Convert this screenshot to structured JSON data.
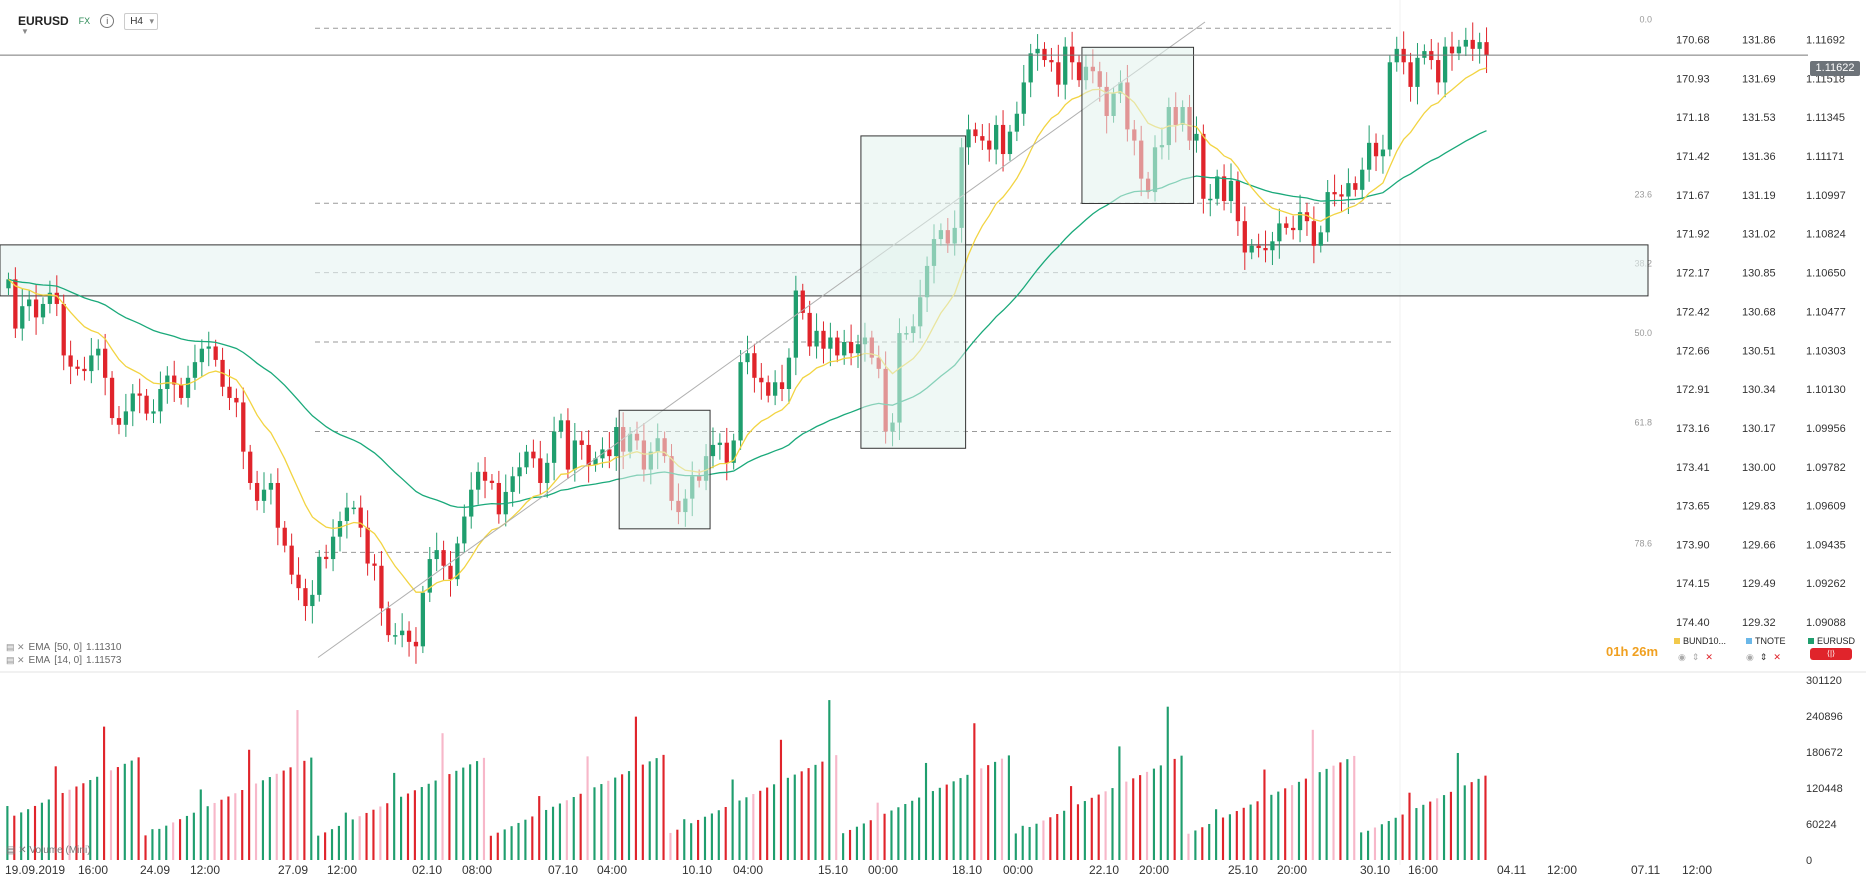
{
  "toolbar": {
    "symbol": "EURUSD",
    "market": "FX",
    "info_icon": "info-icon",
    "timeframe": "H4"
  },
  "indicators": [
    {
      "label": "EMA",
      "params": "[50, 0]",
      "value": "1.11310",
      "color": "#1aa97a"
    },
    {
      "label": "EMA",
      "params": "[14, 0]",
      "value": "1.11573",
      "color": "#f2d442"
    }
  ],
  "volume_label": "Volume (Mini)",
  "timer": "01h 26m",
  "legend": [
    {
      "name": "BUND10...",
      "color": "#f2c94c"
    },
    {
      "name": "TNOTE",
      "color": "#6ab7e8"
    },
    {
      "name": "EURUSD",
      "color": "#1f9e6e"
    }
  ],
  "current_price": "1.11622",
  "chart_data": {
    "type": "candlestick",
    "title": "EURUSD H4",
    "ylim": [
      1.0891,
      1.1177
    ],
    "price_axis": [
      "1.11692",
      "1.11518",
      "1.11345",
      "1.11171",
      "1.10997",
      "1.10824",
      "1.10650",
      "1.10477",
      "1.10303",
      "1.10130",
      "1.09956",
      "1.09782",
      "1.09609",
      "1.09435",
      "1.09262",
      "1.09088"
    ],
    "bund_axis": [
      "170.68",
      "170.93",
      "171.18",
      "171.42",
      "171.67",
      "171.92",
      "172.17",
      "172.42",
      "172.66",
      "172.91",
      "173.16",
      "173.41",
      "173.65",
      "173.90",
      "174.15",
      "174.40"
    ],
    "tnote_axis": [
      "131.86",
      "131.69",
      "131.53",
      "131.36",
      "131.19",
      "131.02",
      "130.85",
      "130.68",
      "130.51",
      "130.34",
      "130.17",
      "130.00",
      "129.83",
      "129.66",
      "129.49",
      "129.32"
    ],
    "x_labels": [
      "19.09.2019",
      "16:00",
      "24.09",
      "12:00",
      "27.09",
      "12:00",
      "02.10",
      "08:00",
      "07.10",
      "04:00",
      "10.10",
      "04:00",
      "15.10",
      "00:00",
      "18.10",
      "00:00",
      "22.10",
      "20:00",
      "25.10",
      "20:00",
      "30.10",
      "16:00",
      "04.11",
      "12:00",
      "07.11",
      "12:00"
    ],
    "fib_levels": [
      {
        "label": "0.0",
        "price": 1.11742
      },
      {
        "label": "23.6",
        "price": 1.1096
      },
      {
        "label": "38.2",
        "price": 1.1065
      },
      {
        "label": "50.0",
        "price": 1.1034
      },
      {
        "label": "61.8",
        "price": 1.0994
      },
      {
        "label": "78.6",
        "price": 1.094
      }
    ],
    "volume_axis": [
      "301120",
      "240896",
      "180672",
      "120448",
      "60224",
      "0"
    ],
    "closes": [
      1.1062,
      1.104,
      1.105,
      1.1053,
      1.1045,
      1.1051,
      1.1056,
      1.1051,
      1.1028,
      1.1023,
      1.1022,
      1.1021,
      1.1028,
      1.1031,
      1.1018,
      1.1,
      1.0997,
      1.1003,
      1.1011,
      1.101,
      1.1002,
      1.1003,
      1.1013,
      1.1019,
      1.1015,
      1.1009,
      1.1018,
      1.1025,
      1.1031,
      1.1032,
      1.1026,
      1.1014,
      1.1009,
      1.1007,
      1.0985,
      1.0971,
      1.0963,
      1.0968,
      1.0971,
      1.0951,
      1.0943,
      1.093,
      1.0924,
      1.0916,
      1.0921,
      1.0938,
      1.0937,
      1.0947,
      1.0954,
      1.096,
      1.096,
      1.0951,
      1.0935,
      1.0934,
      1.0915,
      1.0903,
      1.0903,
      1.0905,
      1.09,
      1.0898,
      1.0922,
      1.0937,
      1.0941,
      1.0934,
      1.0928,
      1.0944,
      1.0956,
      1.0968,
      1.0976,
      1.0972,
      1.0971,
      1.0957,
      1.0967,
      1.0974,
      1.0978,
      1.0985,
      1.0982,
      1.0971,
      1.098,
      1.0994,
      1.0999,
      1.0977,
      1.099,
      1.0988,
      1.0979,
      1.0982,
      1.0986,
      1.0983,
      1.0996,
      1.0985,
      1.0993,
      1.099,
      1.0977,
      1.0985,
      1.0991,
      1.0983,
      1.0963,
      1.0958,
      1.0964,
      1.0974,
      1.0972,
      1.0983,
      1.0988,
      1.0989,
      1.098,
      1.099,
      1.1025,
      1.1029,
      1.1018,
      1.1016,
      1.101,
      1.1016,
      1.1013,
      1.1027,
      1.1057,
      1.1047,
      1.1032,
      1.1039,
      1.1031,
      1.1036,
      1.1028,
      1.1034,
      1.1029,
      1.1033,
      1.1036,
      1.1027,
      1.1022,
      1.0994,
      1.0998,
      1.1038,
      1.1038,
      1.1041,
      1.1054,
      1.1068,
      1.108,
      1.1084,
      1.1078,
      1.1085,
      1.1121,
      1.1129,
      1.1126,
      1.1124,
      1.112,
      1.1131,
      1.1118,
      1.1128,
      1.1136,
      1.115,
      1.1163,
      1.1165,
      1.116,
      1.1159,
      1.1149,
      1.1166,
      1.1159,
      1.1151,
      1.1157,
      1.1155,
      1.1148,
      1.1135,
      1.1145,
      1.115,
      1.1129,
      1.1124,
      1.1107,
      1.1101,
      1.1121,
      1.1122,
      1.1139,
      1.1131,
      1.1139,
      1.1124,
      1.1127,
      1.1098,
      1.1098,
      1.1108,
      1.1097,
      1.1106,
      1.1088,
      1.1074,
      1.1077,
      1.1076,
      1.1075,
      1.1079,
      1.1087,
      1.1085,
      1.1084,
      1.1092,
      1.1088,
      1.1077,
      1.1083,
      1.1101,
      1.11,
      1.1099,
      1.1105,
      1.1102,
      1.1111,
      1.1123,
      1.1117,
      1.112,
      1.1159,
      1.1165,
      1.1159,
      1.1148,
      1.1161,
      1.1164,
      1.116,
      1.115,
      1.1166,
      1.1163,
      1.1166,
      1.1169,
      1.1165,
      1.1168,
      1.1162
    ]
  }
}
